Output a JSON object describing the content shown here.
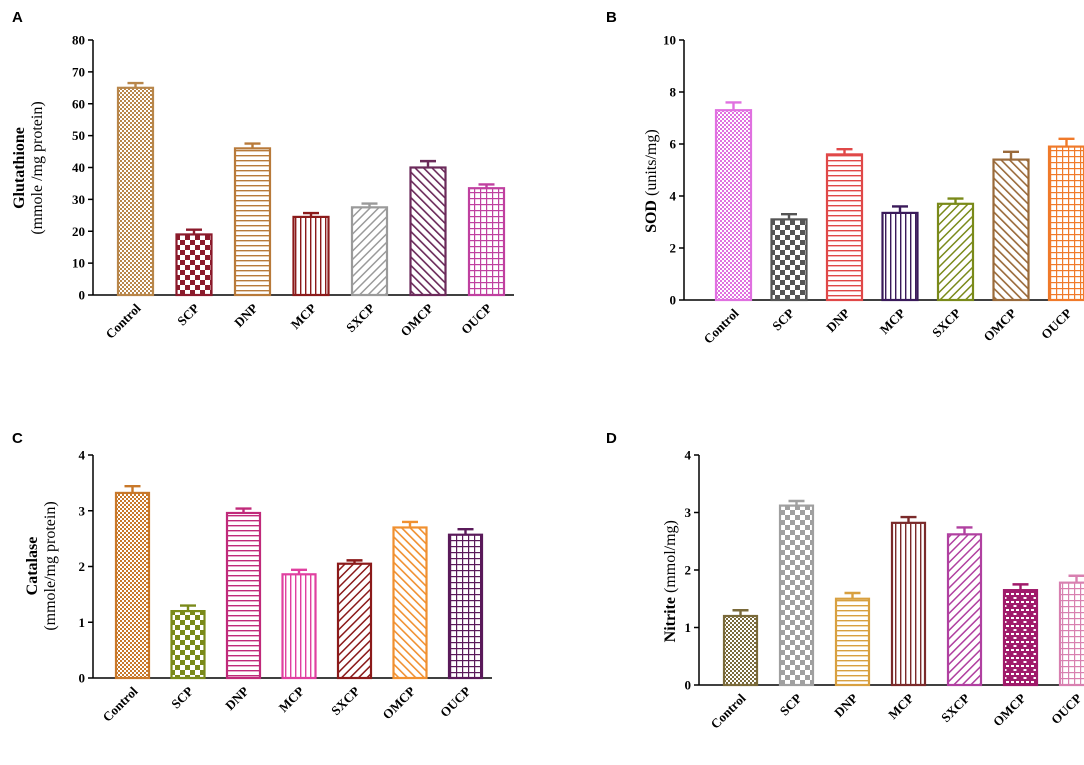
{
  "chart_data": [
    {
      "type": "bar",
      "panel": "A",
      "ylabel_bold": "Glutathione",
      "ylabel_sub": "(mmole /mg protein)",
      "ylim": [
        0,
        80
      ],
      "yticks": [
        0,
        10,
        20,
        30,
        40,
        50,
        60,
        70,
        80
      ],
      "categories": [
        "Control",
        "SCP",
        "DNP",
        "MCP",
        "SXCP",
        "OMCP",
        "OUCP"
      ],
      "values": [
        65,
        19,
        46,
        24.5,
        27.5,
        40,
        33.5
      ],
      "errors": [
        1.5,
        1.5,
        1.5,
        1.2,
        1.2,
        2,
        1.2
      ],
      "colors": [
        "#b8864a",
        "#8b1a2b",
        "#b87a3a",
        "#8b1a1a",
        "#9a9a9a",
        "#6b2a5a",
        "#c040a0"
      ],
      "patterns": [
        "dots",
        "checker",
        "hlines",
        "vlines",
        "diag-up",
        "diag-down",
        "grid"
      ]
    },
    {
      "type": "bar",
      "panel": "B",
      "ylabel_bold": "SOD",
      "ylabel_sub": "(units/mg)",
      "ylim": [
        0,
        10
      ],
      "yticks": [
        0,
        2,
        4,
        6,
        8,
        10
      ],
      "categories": [
        "Control",
        "SCP",
        "DNP",
        "MCP",
        "SXCP",
        "OMCP",
        "OUCP"
      ],
      "values": [
        7.3,
        3.1,
        5.6,
        3.35,
        3.7,
        5.4,
        5.9
      ],
      "errors": [
        0.3,
        0.2,
        0.2,
        0.25,
        0.2,
        0.3,
        0.3
      ],
      "colors": [
        "#e070e0",
        "#555555",
        "#e04848",
        "#3a1a5a",
        "#7a8a1a",
        "#9a6a3a",
        "#f07a2a"
      ],
      "patterns": [
        "dots",
        "checker",
        "hlines",
        "vlines",
        "diag-up",
        "diag-down",
        "grid"
      ]
    },
    {
      "type": "bar",
      "panel": "C",
      "ylabel_bold": "Catalase",
      "ylabel_sub": "(mmole/mg protein)",
      "ylim": [
        0,
        4
      ],
      "yticks": [
        0,
        1,
        2,
        3,
        4
      ],
      "categories": [
        "Control",
        "SCP",
        "DNP",
        "MCP",
        "SXCP",
        "OMCP",
        "OUCP"
      ],
      "values": [
        3.32,
        1.2,
        2.96,
        1.86,
        2.05,
        2.7,
        2.57
      ],
      "errors": [
        0.12,
        0.1,
        0.08,
        0.08,
        0.06,
        0.1,
        0.1
      ],
      "colors": [
        "#c8782a",
        "#7a8a1a",
        "#c02a7a",
        "#e040a0",
        "#8b1a1a",
        "#f09030",
        "#5a1a5a"
      ],
      "patterns": [
        "dots",
        "checker",
        "hlines",
        "vlines",
        "diag-up",
        "diag-down",
        "grid"
      ]
    },
    {
      "type": "bar",
      "panel": "D",
      "ylabel_bold": "Nitrite",
      "ylabel_sub": "(mmol/mg)",
      "ylim": [
        0,
        4
      ],
      "yticks": [
        0,
        1,
        2,
        3,
        4
      ],
      "categories": [
        "Control",
        "SCP",
        "DNP",
        "MCP",
        "SXCP",
        "OMCP",
        "OUCP"
      ],
      "values": [
        1.2,
        3.12,
        1.5,
        2.82,
        2.62,
        1.65,
        1.78
      ],
      "errors": [
        0.1,
        0.08,
        0.1,
        0.1,
        0.12,
        0.1,
        0.12
      ],
      "colors": [
        "#7a6a3a",
        "#a0a0a0",
        "#d8a040",
        "#7a2a2a",
        "#b040a0",
        "#a01a6a",
        "#d880b0"
      ],
      "patterns": [
        "dots",
        "checker",
        "hlines",
        "vlines",
        "diag-up",
        "bricks",
        "grid"
      ]
    }
  ]
}
